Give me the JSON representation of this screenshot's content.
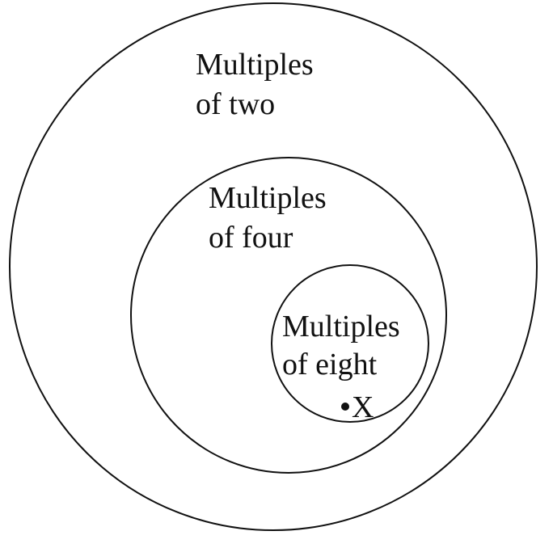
{
  "diagram": {
    "sets": [
      {
        "line1": "Multiples",
        "line2": "of two"
      },
      {
        "line1": "Multiples",
        "line2": "of four"
      },
      {
        "line1": "Multiples",
        "line2": "of eight"
      }
    ],
    "point": {
      "label": "X"
    }
  }
}
